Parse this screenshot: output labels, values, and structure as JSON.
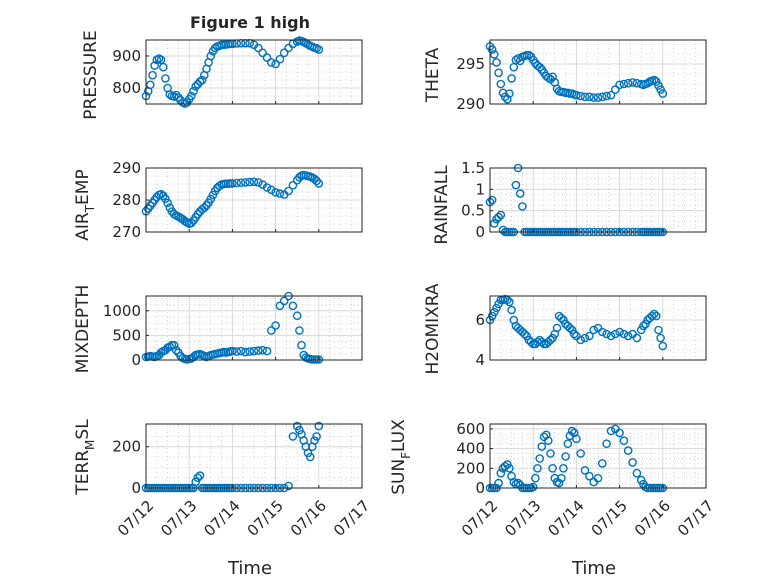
{
  "figure_title": "Figure 1 high",
  "chart_data": [
    {
      "type": "scatter",
      "ylabel": "PRESSURE",
      "title": "Figure 1 high",
      "xlim": [
        0,
        5
      ],
      "ylim": [
        750,
        950
      ],
      "yticks": [
        800,
        900
      ],
      "grid": true,
      "minor_grid": true,
      "x": [
        0.0,
        0.05,
        0.1,
        0.15,
        0.2,
        0.25,
        0.3,
        0.35,
        0.4,
        0.45,
        0.5,
        0.55,
        0.6,
        0.65,
        0.7,
        0.75,
        0.8,
        0.85,
        0.9,
        0.95,
        1.0,
        1.05,
        1.1,
        1.15,
        1.2,
        1.25,
        1.3,
        1.35,
        1.4,
        1.45,
        1.5,
        1.55,
        1.6,
        1.65,
        1.7,
        1.75,
        1.8,
        1.85,
        1.9,
        1.95,
        2.0,
        2.1,
        2.2,
        2.3,
        2.4,
        2.5,
        2.6,
        2.7,
        2.8,
        2.9,
        3.0,
        3.1,
        3.2,
        3.3,
        3.4,
        3.5,
        3.55,
        3.6,
        3.65,
        3.7,
        3.75,
        3.8,
        3.85,
        3.9,
        3.95,
        4.0
      ],
      "y": [
        775,
        790,
        810,
        840,
        870,
        888,
        892,
        888,
        865,
        830,
        800,
        780,
        775,
        773,
        778,
        770,
        762,
        755,
        752,
        755,
        765,
        775,
        790,
        805,
        812,
        820,
        825,
        840,
        860,
        880,
        900,
        915,
        925,
        930,
        932,
        935,
        935,
        936,
        937,
        938,
        938,
        939,
        940,
        940,
        940,
        935,
        925,
        910,
        895,
        880,
        875,
        890,
        910,
        925,
        938,
        945,
        948,
        947,
        944,
        940,
        936,
        932,
        929,
        926,
        924,
        920
      ]
    },
    {
      "type": "scatter",
      "ylabel": "THETA",
      "xlim": [
        0,
        5
      ],
      "ylim": [
        290,
        298
      ],
      "yticks": [
        290,
        295
      ],
      "grid": true,
      "minor_grid": true,
      "x": [
        0.0,
        0.05,
        0.1,
        0.15,
        0.2,
        0.25,
        0.3,
        0.35,
        0.4,
        0.45,
        0.5,
        0.55,
        0.6,
        0.65,
        0.7,
        0.75,
        0.8,
        0.85,
        0.9,
        0.95,
        1.0,
        1.05,
        1.1,
        1.15,
        1.2,
        1.25,
        1.3,
        1.35,
        1.4,
        1.45,
        1.5,
        1.55,
        1.6,
        1.65,
        1.7,
        1.75,
        1.8,
        1.85,
        1.9,
        1.95,
        2.0,
        2.1,
        2.2,
        2.3,
        2.4,
        2.5,
        2.6,
        2.7,
        2.8,
        2.9,
        3.0,
        3.1,
        3.2,
        3.3,
        3.4,
        3.5,
        3.55,
        3.6,
        3.65,
        3.7,
        3.75,
        3.8,
        3.85,
        3.9,
        3.95,
        4.0
      ],
      "y": [
        297.2,
        296.8,
        296.2,
        295.2,
        293.9,
        292.5,
        291.4,
        290.9,
        290.6,
        291.3,
        293.2,
        294.6,
        295.5,
        295.7,
        295.4,
        295.9,
        296.0,
        296.1,
        296.1,
        295.9,
        295.5,
        295.1,
        294.8,
        294.6,
        294.3,
        293.9,
        293.5,
        293.3,
        293.1,
        293.4,
        292.7,
        291.9,
        291.6,
        291.5,
        291.5,
        291.4,
        291.4,
        291.3,
        291.3,
        291.2,
        291.1,
        291.0,
        290.9,
        290.9,
        290.8,
        290.8,
        290.9,
        291.0,
        291.1,
        291.8,
        292.4,
        292.5,
        292.6,
        292.7,
        292.6,
        292.5,
        292.4,
        292.5,
        292.6,
        292.8,
        292.9,
        293.0,
        292.8,
        292.3,
        291.8,
        291.3
      ]
    },
    {
      "type": "scatter",
      "ylabel": "AIR_TEMP",
      "xlim": [
        0,
        5
      ],
      "ylim": [
        270,
        290
      ],
      "yticks": [
        270,
        280,
        290
      ],
      "grid": true,
      "minor_grid": true,
      "x": [
        0.0,
        0.05,
        0.1,
        0.15,
        0.2,
        0.25,
        0.3,
        0.35,
        0.4,
        0.45,
        0.5,
        0.55,
        0.6,
        0.65,
        0.7,
        0.75,
        0.8,
        0.85,
        0.9,
        0.95,
        1.0,
        1.05,
        1.1,
        1.15,
        1.2,
        1.25,
        1.3,
        1.35,
        1.4,
        1.45,
        1.5,
        1.55,
        1.6,
        1.65,
        1.7,
        1.75,
        1.8,
        1.85,
        1.9,
        1.95,
        2.0,
        2.1,
        2.2,
        2.3,
        2.4,
        2.5,
        2.6,
        2.7,
        2.8,
        2.9,
        3.0,
        3.1,
        3.2,
        3.3,
        3.4,
        3.5,
        3.55,
        3.6,
        3.65,
        3.7,
        3.75,
        3.8,
        3.85,
        3.9,
        3.95,
        4.0
      ],
      "y": [
        276.5,
        277.3,
        278.2,
        279.1,
        280.0,
        280.9,
        281.6,
        281.8,
        281.3,
        280.4,
        279.1,
        277.6,
        276.4,
        275.6,
        275.2,
        274.8,
        274.4,
        274.0,
        273.4,
        273.0,
        272.6,
        272.8,
        273.6,
        274.6,
        275.6,
        276.4,
        277.1,
        277.6,
        278.3,
        279.2,
        280.3,
        281.6,
        282.8,
        283.8,
        284.4,
        284.8,
        285.0,
        285.1,
        285.1,
        285.2,
        285.2,
        285.3,
        285.4,
        285.5,
        285.6,
        285.7,
        285.5,
        284.8,
        283.9,
        283.2,
        282.4,
        282.0,
        281.7,
        282.8,
        284.6,
        286.2,
        287.1,
        287.6,
        287.8,
        287.7,
        287.5,
        287.3,
        287.0,
        286.6,
        286.0,
        285.2
      ]
    },
    {
      "type": "scatter",
      "ylabel": "RAINFALL",
      "xlim": [
        0,
        5
      ],
      "ylim": [
        0,
        1.5
      ],
      "yticks": [
        0,
        0.5,
        1,
        1.5
      ],
      "grid": true,
      "minor_grid": true,
      "x": [
        0.0,
        0.05,
        0.1,
        0.15,
        0.2,
        0.25,
        0.3,
        0.35,
        0.4,
        0.45,
        0.5,
        0.55,
        0.6,
        0.65,
        0.7,
        0.75,
        0.8,
        0.85,
        0.9,
        0.95,
        1.0,
        1.05,
        1.1,
        1.15,
        1.2,
        1.25,
        1.3,
        1.35,
        1.4,
        1.45,
        1.5,
        1.55,
        1.6,
        1.65,
        1.7,
        1.75,
        1.8,
        1.85,
        1.9,
        1.95,
        2.0,
        2.1,
        2.2,
        2.3,
        2.4,
        2.5,
        2.6,
        2.7,
        2.8,
        2.9,
        3.0,
        3.1,
        3.2,
        3.3,
        3.4,
        3.5,
        3.55,
        3.6,
        3.65,
        3.7,
        3.75,
        3.8,
        3.85,
        3.9,
        3.95,
        4.0
      ],
      "y": [
        0.7,
        0.75,
        0.2,
        0.3,
        0.35,
        0.4,
        0.05,
        0.0,
        0.0,
        0.0,
        0.0,
        0.0,
        1.1,
        1.5,
        0.9,
        0.6,
        0.0,
        0.0,
        0.0,
        0.0,
        0.0,
        0.0,
        0.0,
        0.0,
        0.0,
        0.0,
        0.0,
        0.0,
        0.0,
        0.0,
        0.0,
        0.0,
        0.0,
        0.0,
        0.0,
        0.0,
        0.0,
        0.0,
        0.0,
        0.0,
        0.0,
        0.0,
        0.0,
        0.0,
        0.0,
        0.0,
        0.0,
        0.0,
        0.0,
        0.0,
        0.0,
        0.0,
        0.0,
        0.0,
        0.0,
        0.0,
        0.0,
        0.0,
        0.0,
        0.0,
        0.0,
        0.0,
        0.0,
        0.0,
        0.0,
        0.0
      ]
    },
    {
      "type": "scatter",
      "ylabel": "MIXDEPTH",
      "xlim": [
        0,
        5
      ],
      "ylim": [
        0,
        1300
      ],
      "yticks": [
        0,
        500,
        1000
      ],
      "grid": true,
      "minor_grid": true,
      "x": [
        0.0,
        0.05,
        0.1,
        0.15,
        0.2,
        0.25,
        0.3,
        0.35,
        0.4,
        0.45,
        0.5,
        0.55,
        0.6,
        0.65,
        0.7,
        0.75,
        0.8,
        0.85,
        0.9,
        0.95,
        1.0,
        1.05,
        1.1,
        1.15,
        1.2,
        1.25,
        1.3,
        1.35,
        1.4,
        1.45,
        1.5,
        1.55,
        1.6,
        1.65,
        1.7,
        1.75,
        1.8,
        1.85,
        1.9,
        1.95,
        2.0,
        2.1,
        2.2,
        2.3,
        2.4,
        2.5,
        2.6,
        2.7,
        2.8,
        2.9,
        3.0,
        3.1,
        3.2,
        3.3,
        3.4,
        3.5,
        3.55,
        3.6,
        3.65,
        3.7,
        3.75,
        3.8,
        3.85,
        3.9,
        3.95,
        4.0
      ],
      "y": [
        60,
        70,
        80,
        70,
        60,
        80,
        100,
        150,
        180,
        200,
        250,
        270,
        300,
        300,
        200,
        150,
        80,
        40,
        20,
        10,
        20,
        30,
        60,
        100,
        110,
        120,
        100,
        80,
        60,
        80,
        100,
        110,
        120,
        130,
        140,
        150,
        160,
        150,
        160,
        170,
        180,
        170,
        180,
        160,
        170,
        180,
        190,
        200,
        180,
        600,
        700,
        1100,
        1200,
        1300,
        1100,
        900,
        600,
        300,
        100,
        50,
        30,
        20,
        10,
        10,
        10,
        10
      ]
    },
    {
      "type": "scatter",
      "ylabel": "H2OMIXRA",
      "xlim": [
        0,
        5
      ],
      "ylim": [
        4,
        7.2
      ],
      "yticks": [
        4,
        6
      ],
      "grid": true,
      "minor_grid": true,
      "x": [
        0.0,
        0.05,
        0.1,
        0.15,
        0.2,
        0.25,
        0.3,
        0.35,
        0.4,
        0.45,
        0.5,
        0.55,
        0.6,
        0.65,
        0.7,
        0.75,
        0.8,
        0.85,
        0.9,
        0.95,
        1.0,
        1.05,
        1.1,
        1.15,
        1.2,
        1.25,
        1.3,
        1.35,
        1.4,
        1.45,
        1.5,
        1.55,
        1.6,
        1.65,
        1.7,
        1.75,
        1.8,
        1.85,
        1.9,
        1.95,
        2.0,
        2.1,
        2.2,
        2.3,
        2.4,
        2.5,
        2.6,
        2.7,
        2.8,
        2.9,
        3.0,
        3.1,
        3.2,
        3.3,
        3.4,
        3.5,
        3.55,
        3.6,
        3.65,
        3.7,
        3.75,
        3.8,
        3.85,
        3.9,
        3.95,
        4.0
      ],
      "y": [
        6.0,
        6.2,
        6.4,
        6.6,
        6.8,
        7.0,
        7.0,
        7.05,
        7.0,
        6.9,
        6.5,
        6.0,
        5.7,
        5.6,
        5.5,
        5.4,
        5.3,
        5.2,
        5.0,
        4.9,
        4.8,
        4.8,
        4.9,
        5.0,
        4.9,
        4.8,
        4.8,
        4.9,
        5.0,
        5.1,
        5.3,
        5.6,
        6.2,
        6.1,
        6.0,
        5.8,
        5.7,
        5.6,
        5.5,
        5.3,
        5.2,
        5.0,
        5.1,
        5.2,
        5.5,
        5.6,
        5.4,
        5.3,
        5.2,
        5.3,
        5.4,
        5.3,
        5.2,
        5.3,
        5.1,
        5.5,
        5.7,
        5.8,
        6.0,
        6.1,
        6.2,
        6.3,
        6.2,
        5.5,
        5.1,
        4.7
      ]
    },
    {
      "type": "scatter",
      "ylabel": "TERR_MSL",
      "xlim": [
        0,
        5
      ],
      "ylim": [
        0,
        310
      ],
      "yticks": [
        0,
        200
      ],
      "grid": true,
      "minor_grid": true,
      "x": [
        0.0,
        0.05,
        0.1,
        0.15,
        0.2,
        0.25,
        0.3,
        0.35,
        0.4,
        0.45,
        0.5,
        0.55,
        0.6,
        0.65,
        0.7,
        0.75,
        0.8,
        0.85,
        0.9,
        0.95,
        1.0,
        1.05,
        1.1,
        1.15,
        1.2,
        1.25,
        1.3,
        1.35,
        1.4,
        1.45,
        1.5,
        1.55,
        1.6,
        1.65,
        1.7,
        1.75,
        1.8,
        1.85,
        1.9,
        1.95,
        2.0,
        2.1,
        2.2,
        2.3,
        2.4,
        2.5,
        2.6,
        2.7,
        2.8,
        2.9,
        3.0,
        3.1,
        3.2,
        3.3,
        3.4,
        3.5,
        3.55,
        3.6,
        3.65,
        3.7,
        3.75,
        3.8,
        3.85,
        3.9,
        3.95,
        4.0
      ],
      "y": [
        0,
        0,
        0,
        0,
        0,
        0,
        0,
        0,
        0,
        0,
        0,
        0,
        0,
        0,
        0,
        0,
        0,
        0,
        0,
        0,
        0,
        0,
        0,
        30,
        50,
        60,
        0,
        0,
        0,
        0,
        0,
        0,
        0,
        0,
        0,
        0,
        0,
        0,
        0,
        0,
        0,
        0,
        0,
        0,
        0,
        0,
        0,
        0,
        0,
        0,
        0,
        0,
        0,
        10,
        250,
        300,
        280,
        260,
        230,
        200,
        170,
        150,
        200,
        230,
        250,
        300
      ]
    },
    {
      "type": "scatter",
      "ylabel": "SUN_FLUX",
      "xlim": [
        0,
        5
      ],
      "ylim": [
        0,
        650
      ],
      "yticks": [
        0,
        200,
        400,
        600
      ],
      "grid": true,
      "minor_grid": true,
      "x": [
        0.0,
        0.05,
        0.1,
        0.15,
        0.2,
        0.25,
        0.3,
        0.35,
        0.4,
        0.45,
        0.5,
        0.55,
        0.6,
        0.65,
        0.7,
        0.75,
        0.8,
        0.85,
        0.9,
        0.95,
        1.0,
        1.05,
        1.1,
        1.15,
        1.2,
        1.25,
        1.3,
        1.35,
        1.4,
        1.45,
        1.5,
        1.55,
        1.6,
        1.65,
        1.7,
        1.75,
        1.8,
        1.85,
        1.9,
        1.95,
        2.0,
        2.1,
        2.2,
        2.3,
        2.4,
        2.5,
        2.6,
        2.7,
        2.8,
        2.9,
        3.0,
        3.1,
        3.2,
        3.3,
        3.4,
        3.5,
        3.55,
        3.6,
        3.65,
        3.7,
        3.75,
        3.8,
        3.85,
        3.9,
        3.95,
        4.0
      ],
      "y": [
        0,
        0,
        0,
        0,
        50,
        150,
        200,
        220,
        240,
        200,
        120,
        60,
        40,
        50,
        30,
        0,
        0,
        0,
        0,
        0,
        10,
        100,
        200,
        300,
        420,
        520,
        540,
        480,
        350,
        200,
        100,
        60,
        50,
        100,
        200,
        320,
        450,
        530,
        580,
        560,
        500,
        350,
        180,
        120,
        60,
        100,
        250,
        450,
        580,
        600,
        560,
        480,
        380,
        260,
        150,
        80,
        40,
        10,
        0,
        0,
        0,
        0,
        0,
        0,
        0,
        0
      ]
    }
  ],
  "axes_labels": {
    "pressure": "PRESSURE",
    "theta": "THETA",
    "air_main": "AIR",
    "air_sub": "T",
    "air_rest": "EMP",
    "rainfall": "RAINFALL",
    "mixdepth": "MIXDEPTH",
    "h2o": "H2OMIXRA",
    "terr_main": "TERR",
    "terr_sub": "M",
    "terr_rest": "SL",
    "sun_main": "SUN",
    "sun_sub": "F",
    "sun_rest": "LUX"
  },
  "xticks": [
    "07/12",
    "07/13",
    "07/14",
    "07/15",
    "07/16",
    "07/17"
  ],
  "xlabel": "Time",
  "colors": {
    "marker": "#0072bd",
    "axis": "#262626",
    "grid": "#d9d9d9"
  }
}
